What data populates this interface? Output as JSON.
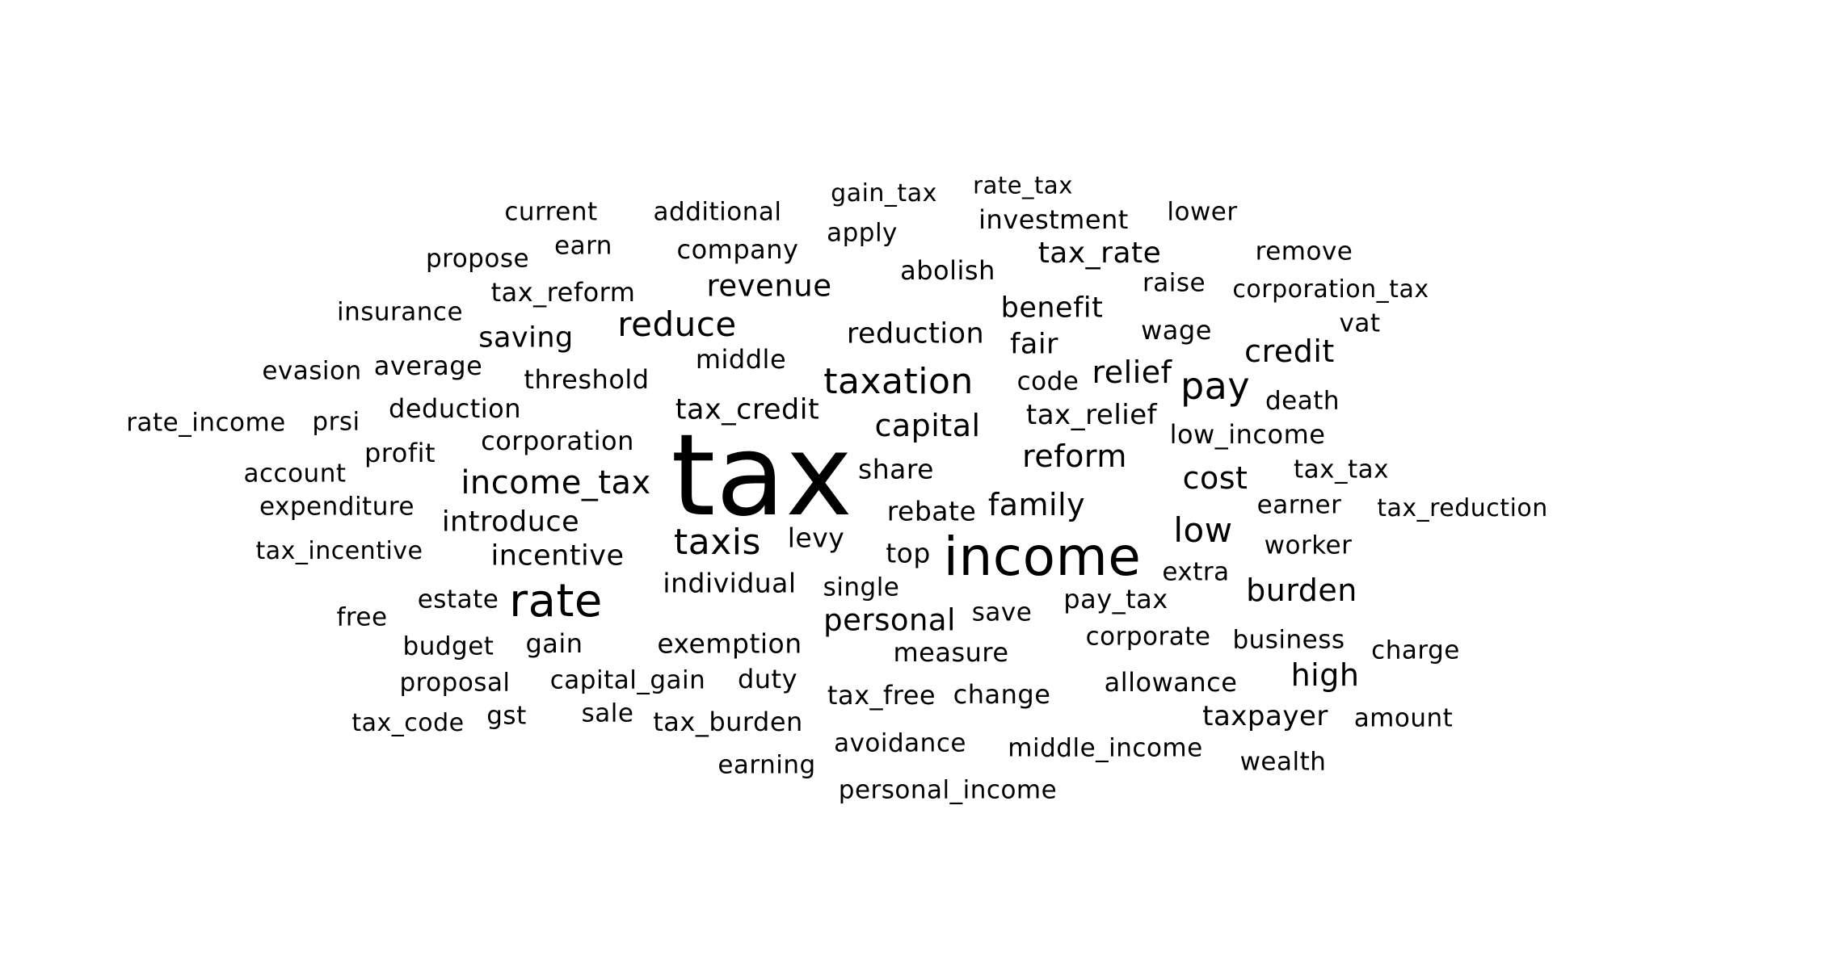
{
  "words": [
    {
      "text": "tax",
      "weight": 100
    },
    {
      "text": "income",
      "weight": 48
    },
    {
      "text": "rate",
      "weight": 40
    },
    {
      "text": "taxation",
      "weight": 30
    },
    {
      "text": "pay",
      "weight": 32
    },
    {
      "text": "taxis",
      "weight": 30
    },
    {
      "text": "reduce",
      "weight": 29
    },
    {
      "text": "income_tax",
      "weight": 28
    },
    {
      "text": "capital",
      "weight": 27
    },
    {
      "text": "reform",
      "weight": 27
    },
    {
      "text": "cost",
      "weight": 28
    },
    {
      "text": "low",
      "weight": 30
    },
    {
      "text": "family",
      "weight": 27
    },
    {
      "text": "credit",
      "weight": 27
    },
    {
      "text": "relief",
      "weight": 26
    },
    {
      "text": "burden",
      "weight": 27
    },
    {
      "text": "high",
      "weight": 27
    },
    {
      "text": "personal",
      "weight": 26
    },
    {
      "text": "revenue",
      "weight": 26
    },
    {
      "text": "tax_rate",
      "weight": 26
    },
    {
      "text": "benefit",
      "weight": 25
    },
    {
      "text": "introduce",
      "weight": 25
    },
    {
      "text": "incentive",
      "weight": 25
    },
    {
      "text": "reduction",
      "weight": 25
    },
    {
      "text": "tax_credit",
      "weight": 25
    },
    {
      "text": "saving",
      "weight": 24
    },
    {
      "text": "fair",
      "weight": 24
    },
    {
      "text": "taxpayer",
      "weight": 24
    },
    {
      "text": "tax_relief",
      "weight": 24
    },
    {
      "text": "low_income",
      "weight": 23
    },
    {
      "text": "individual",
      "weight": 23
    },
    {
      "text": "tax_reform",
      "weight": 22
    },
    {
      "text": "investment",
      "weight": 22
    },
    {
      "text": "company",
      "weight": 22
    },
    {
      "text": "exemption",
      "weight": 22
    },
    {
      "text": "corporation",
      "weight": 22
    },
    {
      "text": "deduction",
      "weight": 22
    },
    {
      "text": "wage",
      "weight": 22
    },
    {
      "text": "levy",
      "weight": 22
    },
    {
      "text": "top",
      "weight": 22
    },
    {
      "text": "rebate",
      "weight": 22
    },
    {
      "text": "share",
      "weight": 22
    },
    {
      "text": "pay_tax",
      "weight": 22
    },
    {
      "text": "measure",
      "weight": 22
    },
    {
      "text": "abolish",
      "weight": 22
    },
    {
      "text": "additional",
      "weight": 22
    },
    {
      "text": "current",
      "weight": 22
    },
    {
      "text": "gain_tax",
      "weight": 21
    },
    {
      "text": "apply",
      "weight": 21
    },
    {
      "text": "middle",
      "weight": 22
    },
    {
      "text": "threshold",
      "weight": 22
    },
    {
      "text": "average",
      "weight": 22
    },
    {
      "text": "profit",
      "weight": 22
    },
    {
      "text": "account",
      "weight": 21
    },
    {
      "text": "expenditure",
      "weight": 21
    },
    {
      "text": "tax_incentive",
      "weight": 21
    },
    {
      "text": "estate",
      "weight": 21
    },
    {
      "text": "free",
      "weight": 21
    },
    {
      "text": "budget",
      "weight": 21
    },
    {
      "text": "gain",
      "weight": 22
    },
    {
      "text": "proposal",
      "weight": 21
    },
    {
      "text": "capital_gain",
      "weight": 22
    },
    {
      "text": "duty",
      "weight": 22
    },
    {
      "text": "tax_code",
      "weight": 21
    },
    {
      "text": "gst",
      "weight": 21
    },
    {
      "text": "sale",
      "weight": 21
    },
    {
      "text": "tax_burden",
      "weight": 22
    },
    {
      "text": "earning",
      "weight": 21
    },
    {
      "text": "avoidance",
      "weight": 21
    },
    {
      "text": "personal_income",
      "weight": 21
    },
    {
      "text": "middle_income",
      "weight": 21
    },
    {
      "text": "wealth",
      "weight": 21
    },
    {
      "text": "amount",
      "weight": 21
    },
    {
      "text": "allowance",
      "weight": 22
    },
    {
      "text": "change",
      "weight": 22
    },
    {
      "text": "tax_free",
      "weight": 22
    },
    {
      "text": "corporate",
      "weight": 21
    },
    {
      "text": "business",
      "weight": 21
    },
    {
      "text": "charge",
      "weight": 21
    },
    {
      "text": "save",
      "weight": 21
    },
    {
      "text": "single",
      "weight": 21
    },
    {
      "text": "extra",
      "weight": 21
    },
    {
      "text": "worker",
      "weight": 21
    },
    {
      "text": "earner",
      "weight": 21
    },
    {
      "text": "tax_reduction",
      "weight": 21
    },
    {
      "text": "tax_tax",
      "weight": 21
    },
    {
      "text": "death",
      "weight": 21
    },
    {
      "text": "code",
      "weight": 21
    },
    {
      "text": "vat",
      "weight": 21
    },
    {
      "text": "corporation_tax",
      "weight": 21
    },
    {
      "text": "raise",
      "weight": 21
    },
    {
      "text": "remove",
      "weight": 21
    },
    {
      "text": "lower",
      "weight": 21
    },
    {
      "text": "rate_tax",
      "weight": 20
    },
    {
      "text": "earn",
      "weight": 21
    },
    {
      "text": "propose",
      "weight": 21
    },
    {
      "text": "insurance",
      "weight": 21
    },
    {
      "text": "evasion",
      "weight": 21
    },
    {
      "text": "rate_income",
      "weight": 21
    },
    {
      "text": "prsi",
      "weight": 21
    }
  ]
}
